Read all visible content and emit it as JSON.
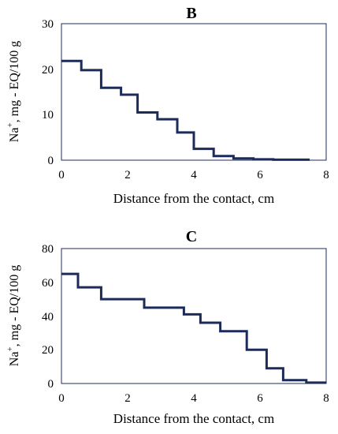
{
  "chart_data": [
    {
      "type": "line",
      "step": true,
      "title": "B",
      "xlabel": "Distance from the contact, cm",
      "ylabel_main": "Na",
      "ylabel_sup": "+",
      "ylabel_rest": ", mg - EQ/100 g",
      "xlim": [
        0,
        8
      ],
      "ylim": [
        0,
        30
      ],
      "xticks": [
        "0",
        "2",
        "4",
        "6",
        "8"
      ],
      "yticks": [
        "0",
        "10",
        "20",
        "30"
      ],
      "grid": false,
      "line_color": "#1c2b5a",
      "x": [
        0,
        0.6,
        1.2,
        1.8,
        2.3,
        2.9,
        3.5,
        4.0,
        4.6,
        5.2,
        5.8,
        6.4,
        7.0,
        7.5
      ],
      "y": [
        21.8,
        19.8,
        15.9,
        14.4,
        10.5,
        9.0,
        6.1,
        2.5,
        0.9,
        0.4,
        0.2,
        0.1,
        0.1,
        0.1
      ]
    },
    {
      "type": "line",
      "step": true,
      "title": "C",
      "xlabel": "Distance from the contact, cm",
      "ylabel_main": "Na",
      "ylabel_sup": "+",
      "ylabel_rest": ", mg - EQ/100 g",
      "xlim": [
        0,
        8
      ],
      "ylim": [
        0,
        80
      ],
      "xticks": [
        "0",
        "2",
        "4",
        "6",
        "8"
      ],
      "yticks": [
        "0",
        "20",
        "40",
        "60",
        "80"
      ],
      "grid": false,
      "line_color": "#1c2b5a",
      "x": [
        0,
        0.5,
        1.2,
        2.5,
        3.7,
        4.2,
        4.8,
        5.6,
        6.2,
        6.7,
        7.4,
        8.0
      ],
      "y": [
        65,
        57,
        50,
        45,
        41,
        36,
        31,
        20,
        9,
        2,
        0.5,
        0.5
      ]
    }
  ]
}
